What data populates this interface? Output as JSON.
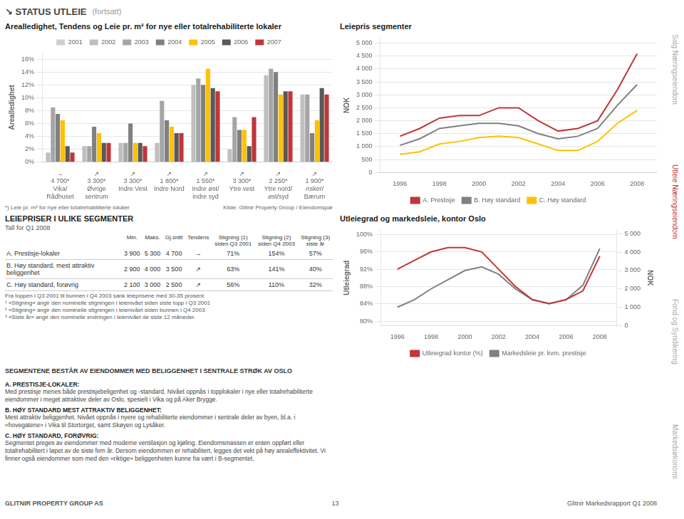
{
  "header": "↘ STATUS UTLEIE",
  "header_note": "(fortsatt)",
  "footer": [
    "GLITNIR PROPERTY GROUP AS",
    "13",
    "Glitnir Markedsrapport Q1 2008"
  ],
  "side_labels": [
    {
      "text": "Salg Næringseiendom",
      "color": "#aaaaaa"
    },
    {
      "text": "Utleie Næringseiendom",
      "color": "#c0363a"
    },
    {
      "text": "Fond og Syndikering",
      "color": "#aaaaaa"
    },
    {
      "text": "Markedsøkonomi",
      "color": "#aaaaaa"
    }
  ],
  "chart_data": [
    {
      "type": "bar",
      "title": "Arealledighet, Tendens og Leie pr. m² for nye eller totalrehabiliterte lokaler",
      "ylabel": "Arealledighet",
      "categories": [
        "Vika/Rådhuset",
        "Øvrige sentrum",
        "Indre Vest",
        "Indre Nord",
        "Indre øst/indre syd",
        "Ytre vest",
        "Ytre nord/øst/syd",
        "Asker/Bærum"
      ],
      "series": [
        {
          "name": "2001",
          "color": "#d0cece",
          "values": [
            null,
            null,
            null,
            null,
            null,
            null,
            null,
            null
          ]
        },
        {
          "name": "2002",
          "color": "#bfbfbf",
          "values": [
            1.5,
            2.5,
            3.0,
            3.0,
            12.0,
            2.0,
            13.5,
            10.5
          ]
        },
        {
          "name": "2003",
          "color": "#a5a5a5",
          "values": [
            8.5,
            2.5,
            3.0,
            9.5,
            13.0,
            7.0,
            14.5,
            10.5
          ]
        },
        {
          "name": "2004",
          "color": "#808080",
          "values": [
            7.5,
            5.5,
            6.0,
            6.5,
            12.0,
            5.0,
            14.0,
            4.5
          ]
        },
        {
          "name": "2005",
          "color": "#ffc000",
          "values": [
            6.5,
            4.5,
            3.0,
            5.5,
            14.5,
            5.0,
            10.5,
            6.5
          ]
        },
        {
          "name": "2006",
          "color": "#595959",
          "values": [
            2.5,
            3.0,
            3.0,
            4.5,
            11.5,
            2.5,
            11.0,
            11.5
          ]
        },
        {
          "name": "2007",
          "color": "#c0363a",
          "values": [
            1.5,
            3.0,
            2.5,
            4.5,
            11.0,
            7.0,
            11.0,
            10.5
          ]
        }
      ],
      "ylim": [
        0,
        17
      ],
      "yticks": [
        {
          "value": 0,
          "label": "0%"
        },
        {
          "value": 2,
          "label": "2%"
        },
        {
          "value": 4,
          "label": "4%"
        },
        {
          "value": 6,
          "label": "6%"
        },
        {
          "value": 8,
          "label": "8%"
        },
        {
          "value": 10,
          "label": "10%"
        },
        {
          "value": 12,
          "label": "12%"
        },
        {
          "value": 14,
          "label": "14%"
        },
        {
          "value": 16,
          "label": "16%"
        }
      ],
      "grid": true,
      "legend": "top",
      "annotations": [
        {
          "x": "Vika/Rådhuset",
          "text": [
            "→",
            "4 700*"
          ]
        },
        {
          "x": "Øvrige sentrum",
          "text": [
            "↗",
            "3 300*"
          ]
        },
        {
          "x": "Indre Vest",
          "text": [
            "↗",
            "3 300*"
          ]
        },
        {
          "x": "Indre Nord",
          "text": [
            "↗",
            "1 800*"
          ]
        },
        {
          "x": "Indre øst/indre syd",
          "text": [
            "↗",
            "1 550*"
          ]
        },
        {
          "x": "Ytre vest",
          "text": [
            "↗",
            "3 300*"
          ]
        },
        {
          "x": "Ytre nord/øst/syd",
          "text": [
            "↗",
            "2 250*"
          ]
        },
        {
          "x": "Asker/Bærum",
          "text": [
            "↗",
            "1 900*"
          ]
        },
        {
          "text": "*) Leie pr. m² for nye eller totalrehabiliterte lokaler"
        },
        {
          "text": "Kilde: Glitnir Property Group / Eiendomspar"
        }
      ]
    },
    {
      "type": "line",
      "title": "Leiepris segmenter",
      "ylabel": "NOK",
      "x": [
        1996,
        1997,
        1998,
        1999,
        2000,
        2001,
        2002,
        2003,
        2004,
        2005,
        2006,
        2007,
        2008
      ],
      "series": [
        {
          "name": "A. Prestisje",
          "color": "#c0363a",
          "values": [
            1400,
            1700,
            2100,
            2200,
            2200,
            2500,
            2500,
            2000,
            1600,
            1700,
            2000,
            3200,
            4600
          ]
        },
        {
          "name": "B. Høy standard",
          "color": "#808080",
          "values": [
            1050,
            1300,
            1700,
            1800,
            1900,
            1900,
            1800,
            1500,
            1300,
            1400,
            1700,
            2600,
            3400
          ]
        },
        {
          "name": "C. Høy standard",
          "color": "#ffc000",
          "values": [
            700,
            800,
            1100,
            1200,
            1350,
            1400,
            1350,
            1100,
            850,
            850,
            1200,
            1900,
            2400
          ]
        }
      ],
      "xlim": [
        1995,
        2009
      ],
      "xticks": [
        1996,
        1998,
        2000,
        2002,
        2004,
        2006,
        2008
      ],
      "ylim": [
        0,
        5200
      ],
      "yticks": [
        0,
        500,
        {
          "value": 1000,
          "label": "1 000"
        },
        {
          "value": 1500,
          "label": "1 500"
        },
        {
          "value": 2000,
          "label": "2 000"
        },
        {
          "value": 2500,
          "label": "2 500"
        },
        {
          "value": 3000,
          "label": "3 000"
        },
        {
          "value": 3500,
          "label": "3 500"
        },
        {
          "value": 4000,
          "label": "4 000"
        },
        {
          "value": 4500,
          "label": "4 500"
        },
        {
          "value": 5000,
          "label": "5 000"
        }
      ],
      "grid": true,
      "legend": "bottom"
    },
    {
      "type": "table",
      "title": "LEIEPRISER I ULIKE SEGMENTER",
      "subtitle": "Tall for Q1 2008",
      "columns": [
        "Min.",
        "Maks.",
        "Gj.snitt",
        "Tendens",
        "Stigning (1)\nsiden Q3 2001",
        "Stigning (2)\nsiden Q4 2003",
        "Stigning (3)\nsiste år"
      ],
      "rows": [
        [
          "A. Prestisje-lokaler",
          "3 900",
          "5 300",
          "4 700",
          "→",
          "71%",
          "154%",
          "57%"
        ],
        [
          "B. Høy standard, mest attraktiv beliggenhet",
          "2 900",
          "4 000",
          "3 500",
          "↗",
          "63%",
          "141%",
          "40%"
        ],
        [
          "C. Høy standard, forøvrig",
          "2 100",
          "3 000",
          "2 500",
          "↗",
          "56%",
          "110%",
          "32%"
        ]
      ],
      "footnotes": [
        "Fra toppen i Q3 2001 til bunnen i Q4 2003 sank leieprisene med 30-35 prosent.",
        "¹ «Stigning» angir den nominelle stigningen i leienivået siden siste topp i Q3 2001",
        "² «Stigning» angir den nominelle stigningen i leienivået siden bunnen i Q4 2003",
        "³ «Siste år» angir den nominelle endringen i leienivået de siste 12 måneder."
      ]
    },
    {
      "type": "line",
      "title": "Utleiegrad og markedsleie, kontor Oslo",
      "ylabel": "Utleiegrad",
      "y2label": "NOK",
      "x": [
        1996,
        1997,
        1998,
        1999,
        2000,
        2001,
        2002,
        2003,
        2004,
        2005,
        2006,
        2007,
        2008
      ],
      "series": [
        {
          "name": "Utleiegrad kontor (%)",
          "color": "#c0363a",
          "axis": "y",
          "values": [
            92,
            94,
            96,
            97,
            97,
            96,
            92,
            88,
            85,
            84,
            85,
            87,
            95
          ]
        },
        {
          "name": "Markedsleie pr. kvm. prestisje",
          "color": "#808080",
          "axis": "y2",
          "values": [
            1000,
            1400,
            2000,
            2500,
            3000,
            3200,
            2800,
            2000,
            1400,
            1200,
            1400,
            2200,
            4200
          ]
        }
      ],
      "xlim": [
        1995,
        2009
      ],
      "xticks": [
        1996,
        1998,
        2000,
        2002,
        2004,
        2006,
        2008
      ],
      "ylim": [
        79,
        101
      ],
      "yticks": [
        {
          "value": 80,
          "label": "80%"
        },
        {
          "value": 84,
          "label": "84%"
        },
        {
          "value": 88,
          "label": "88%"
        },
        {
          "value": 92,
          "label": "92%"
        },
        {
          "value": 96,
          "label": "96%"
        },
        {
          "value": 100,
          "label": "100%"
        }
      ],
      "y2lim": [
        0,
        5200
      ],
      "y2ticks": [
        0,
        {
          "value": 1000,
          "label": "1 000"
        },
        {
          "value": 2000,
          "label": "2 000"
        },
        {
          "value": 3000,
          "label": "3 000"
        },
        {
          "value": 4000,
          "label": "4 000"
        },
        {
          "value": 5000,
          "label": "5 000"
        }
      ],
      "grid": true,
      "legend": "bottom"
    },
    {
      "type": "text",
      "title": "SEGMENTENE BESTÅR AV EIENDOMMER MED BELIGGENHET I SENTRALE STRØK AV OSLO",
      "sections": [
        {
          "title": "A. PRESTISJE-LOKALER:",
          "text": "Med prestisje menes både prestisjebeligenhet og -standard. Nivået oppnås i topplokaler i nye eller totalrehabiliterte eiendommer i meget attraktive deler av Oslo, spesielt i Vika og på Aker Brygge."
        },
        {
          "title": "B. HØY STANDARD MEST ATTRAKTIV BELIGGENHET:",
          "text": "Mest attraktiv beliggenhet. Nivået oppnås i nyere og rehabiliterte eiendommer i sentrale deler av byen, bl.a. i «hovegatene» i Vika til Stortorget, samt Skøyen og Lysåker."
        },
        {
          "title": "C. HØY STANDARD, FORØVRIG:",
          "text": "Segmentet preges av eiendommer med moderne ventilasjon og kjøling. Eiendomsmassen er enten oppført eller totalrehabilitert i løpet av de siste fem år. Dersom eiendommen er rehabilitert, legges det vekt på høy arealeffektivitet. Vi finner også eiendommer som med den «riktige» beliggenheten kunne ha vært i B-segmentet."
        }
      ]
    }
  ]
}
